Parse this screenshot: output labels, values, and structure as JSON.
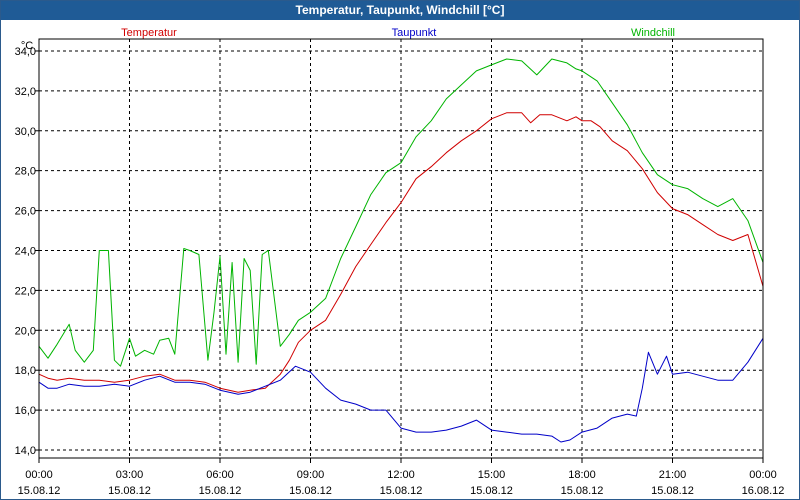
{
  "chart_data": {
    "type": "line",
    "title": "Temperatur, Taupunkt, Windchill [°C]",
    "ylabel": "°C",
    "xlabel": "",
    "ylim": [
      13.6,
      34.6
    ],
    "xlim": [
      0,
      24
    ],
    "y_ticks": [
      "14,0",
      "16,0",
      "18,0",
      "20,0",
      "22,0",
      "24,0",
      "26,0",
      "28,0",
      "30,0",
      "32,0",
      "34,0"
    ],
    "y_tick_values": [
      14,
      16,
      18,
      20,
      22,
      24,
      26,
      28,
      30,
      32,
      34
    ],
    "x_ticks": [
      {
        "hour": 0,
        "time": "00:00",
        "date": "15.08.12"
      },
      {
        "hour": 3,
        "time": "03:00",
        "date": "15.08.12"
      },
      {
        "hour": 6,
        "time": "06:00",
        "date": "15.08.12"
      },
      {
        "hour": 9,
        "time": "09:00",
        "date": "15.08.12"
      },
      {
        "hour": 12,
        "time": "12:00",
        "date": "15.08.12"
      },
      {
        "hour": 15,
        "time": "15:00",
        "date": "15.08.12"
      },
      {
        "hour": 18,
        "time": "18:00",
        "date": "15.08.12"
      },
      {
        "hour": 21,
        "time": "21:00",
        "date": "15.08.12"
      },
      {
        "hour": 24,
        "time": "00:00",
        "date": "16.08.12"
      }
    ],
    "grid": true,
    "series": [
      {
        "name": "Temperatur",
        "color": "#d00000",
        "x": [
          0,
          0.3,
          0.6,
          1,
          1.5,
          2,
          2.5,
          3,
          3.5,
          4,
          4.5,
          5,
          5.5,
          6,
          6.3,
          6.6,
          7,
          7.5,
          8,
          8.3,
          8.6,
          9,
          9.5,
          10,
          10.5,
          11,
          11.5,
          12,
          12.5,
          13,
          13.5,
          14,
          14.5,
          15,
          15.5,
          16,
          16.3,
          16.6,
          17,
          17.5,
          17.8,
          18,
          18.3,
          18.6,
          19,
          19.5,
          20,
          20.5,
          21,
          21.5,
          22,
          22.5,
          23,
          23.5,
          24
        ],
        "values": [
          17.8,
          17.6,
          17.5,
          17.6,
          17.5,
          17.5,
          17.4,
          17.5,
          17.7,
          17.8,
          17.5,
          17.5,
          17.4,
          17.1,
          17.0,
          16.9,
          17.0,
          17.1,
          17.8,
          18.5,
          19.4,
          20.0,
          20.5,
          21.8,
          23.2,
          24.3,
          25.4,
          26.4,
          27.6,
          28.2,
          28.9,
          29.5,
          30.0,
          30.6,
          30.9,
          30.9,
          30.4,
          30.8,
          30.8,
          30.5,
          30.7,
          30.5,
          30.5,
          30.2,
          29.5,
          29.0,
          28.1,
          26.9,
          26.1,
          25.8,
          25.3,
          24.8,
          24.5,
          24.8,
          22.2
        ]
      },
      {
        "name": "Taupunkt",
        "color": "#0000c8",
        "x": [
          0,
          0.3,
          0.6,
          1,
          1.5,
          2,
          2.5,
          3,
          3.5,
          4,
          4.5,
          5,
          5.5,
          6,
          6.3,
          6.6,
          7,
          7.5,
          8,
          8.5,
          9,
          9.5,
          10,
          10.5,
          11,
          11.5,
          12,
          12.5,
          13,
          13.5,
          14,
          14.5,
          15,
          15.5,
          16,
          16.5,
          17,
          17.3,
          17.6,
          18,
          18.5,
          19,
          19.5,
          19.8,
          20,
          20.2,
          20.5,
          20.8,
          21,
          21.5,
          22,
          22.5,
          23,
          23.5,
          24
        ],
        "values": [
          17.4,
          17.1,
          17.1,
          17.3,
          17.2,
          17.2,
          17.3,
          17.2,
          17.5,
          17.7,
          17.4,
          17.4,
          17.3,
          17.0,
          16.9,
          16.8,
          16.9,
          17.2,
          17.5,
          18.2,
          17.9,
          17.1,
          16.5,
          16.3,
          16.0,
          16.0,
          15.1,
          14.9,
          14.9,
          15.0,
          15.2,
          15.5,
          15.0,
          14.9,
          14.8,
          14.8,
          14.7,
          14.4,
          14.5,
          14.9,
          15.1,
          15.6,
          15.8,
          15.7,
          17.1,
          18.9,
          17.8,
          18.7,
          17.8,
          17.9,
          17.7,
          17.5,
          17.5,
          18.4,
          19.6
        ]
      },
      {
        "name": "Windchill",
        "color": "#00b400",
        "x": [
          0,
          0.3,
          0.6,
          1,
          1.2,
          1.5,
          1.8,
          2,
          2.3,
          2.5,
          2.7,
          3,
          3.2,
          3.5,
          3.8,
          4,
          4.3,
          4.5,
          4.8,
          5,
          5.3,
          5.6,
          5.8,
          6,
          6.2,
          6.4,
          6.6,
          6.8,
          7,
          7.2,
          7.4,
          7.6,
          8,
          8.3,
          8.6,
          9,
          9.5,
          10,
          10.5,
          11,
          11.5,
          12,
          12.5,
          13,
          13.5,
          14,
          14.5,
          15,
          15.5,
          16,
          16.5,
          17,
          17.5,
          17.8,
          18,
          18.5,
          19,
          19.5,
          20,
          20.5,
          21,
          21.5,
          22,
          22.5,
          23,
          23.5,
          24
        ],
        "values": [
          19.2,
          18.6,
          19.3,
          20.3,
          19.0,
          18.4,
          19.0,
          24.0,
          24.0,
          18.5,
          18.2,
          19.6,
          18.7,
          19.0,
          18.8,
          19.5,
          19.6,
          18.8,
          24.1,
          24.0,
          23.8,
          18.5,
          20.9,
          23.7,
          18.8,
          23.4,
          18.4,
          23.6,
          23.0,
          18.3,
          23.8,
          24.0,
          19.2,
          19.8,
          20.5,
          20.9,
          21.6,
          23.6,
          25.2,
          26.8,
          27.9,
          28.4,
          29.7,
          30.5,
          31.6,
          32.3,
          33.0,
          33.3,
          33.6,
          33.5,
          32.8,
          33.6,
          33.4,
          33.1,
          33.0,
          32.5,
          31.4,
          30.3,
          28.9,
          27.8,
          27.3,
          27.1,
          26.6,
          26.2,
          26.6,
          25.5,
          23.4
        ]
      }
    ]
  }
}
